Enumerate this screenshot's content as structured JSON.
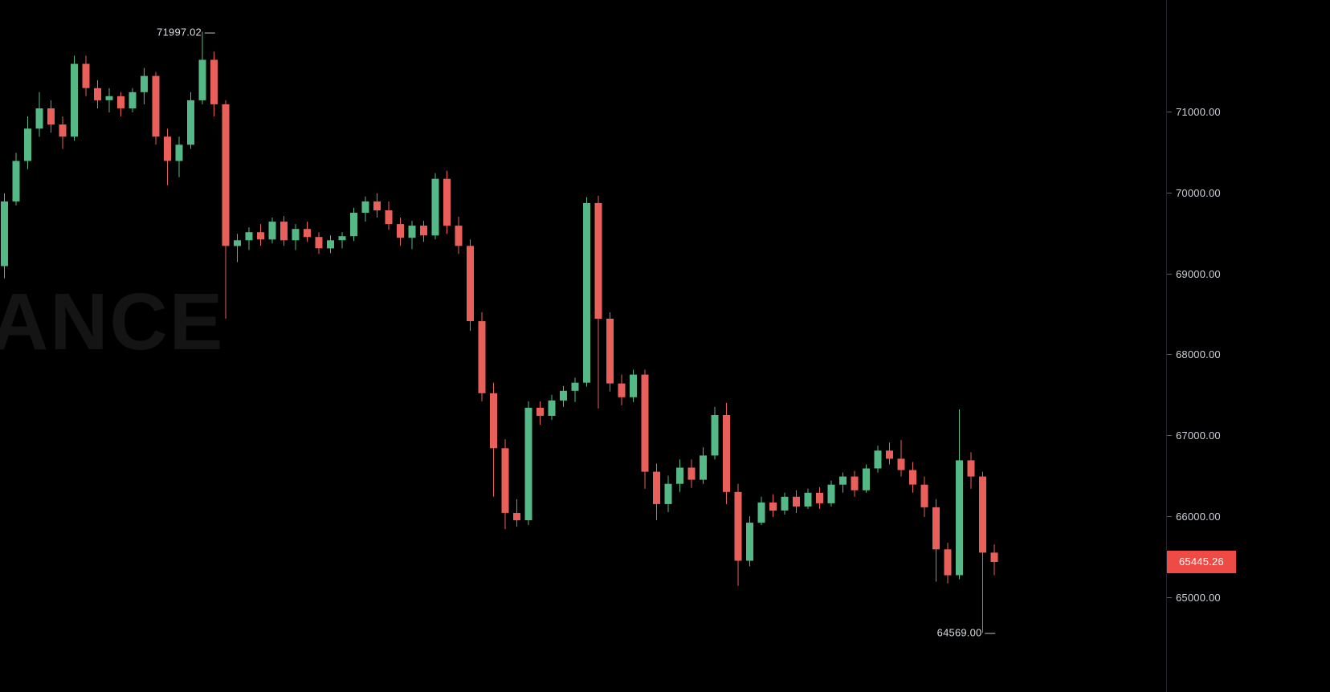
{
  "chart": {
    "watermark": "ANCE",
    "high_label": "71997.02 —",
    "low_label": "64569.00 —",
    "price_badge": "65445.26",
    "colors": {
      "up": "#55b987",
      "down": "#e9605a",
      "badge": "#ef4b46",
      "axis_text": "#cfd3d9",
      "background": "#000000"
    }
  },
  "chart_data": {
    "type": "candlestick",
    "title": "",
    "watermark_text": "ANCE",
    "last_price": 65445.26,
    "high_annotation": 71997.02,
    "low_annotation": 64569.0,
    "y_axis": {
      "ticks": [
        71000,
        70000,
        69000,
        68000,
        67000,
        66000,
        65000
      ],
      "labels": [
        "71000.00",
        "70000.00",
        "69000.00",
        "68000.00",
        "67000.00",
        "66000.00",
        "65000.00"
      ]
    },
    "legend": [],
    "grid": false,
    "candles": [
      [
        69100,
        70000,
        68950,
        69900
      ],
      [
        69900,
        70500,
        69850,
        70400
      ],
      [
        70400,
        70950,
        70300,
        70800
      ],
      [
        70800,
        71250,
        70700,
        71050
      ],
      [
        71050,
        71150,
        70750,
        70850
      ],
      [
        70850,
        70950,
        70550,
        70700
      ],
      [
        70700,
        71700,
        70650,
        71600
      ],
      [
        71600,
        71700,
        71200,
        71300
      ],
      [
        71300,
        71400,
        71050,
        71150
      ],
      [
        71150,
        71300,
        71000,
        71200
      ],
      [
        71200,
        71250,
        70950,
        71050
      ],
      [
        71050,
        71300,
        71000,
        71250
      ],
      [
        71250,
        71550,
        71100,
        71450
      ],
      [
        71450,
        71500,
        70600,
        70700
      ],
      [
        70700,
        70800,
        70100,
        70400
      ],
      [
        70400,
        70700,
        70200,
        70600
      ],
      [
        70600,
        71250,
        70550,
        71150
      ],
      [
        71150,
        71997.02,
        71100,
        71650
      ],
      [
        71650,
        71750,
        70950,
        71100
      ],
      [
        71100,
        71150,
        68450,
        69350
      ],
      [
        69350,
        69500,
        69150,
        69420
      ],
      [
        69420,
        69580,
        69300,
        69520
      ],
      [
        69520,
        69620,
        69350,
        69430
      ],
      [
        69430,
        69700,
        69380,
        69650
      ],
      [
        69650,
        69720,
        69350,
        69420
      ],
      [
        69420,
        69620,
        69300,
        69560
      ],
      [
        69560,
        69650,
        69400,
        69460
      ],
      [
        69460,
        69520,
        69250,
        69320
      ],
      [
        69320,
        69480,
        69260,
        69420
      ],
      [
        69420,
        69520,
        69320,
        69470
      ],
      [
        69470,
        69820,
        69410,
        69760
      ],
      [
        69760,
        69960,
        69650,
        69900
      ],
      [
        69900,
        70000,
        69700,
        69790
      ],
      [
        69790,
        69900,
        69550,
        69620
      ],
      [
        69620,
        69700,
        69350,
        69450
      ],
      [
        69450,
        69660,
        69310,
        69600
      ],
      [
        69600,
        69660,
        69400,
        69480
      ],
      [
        69480,
        70250,
        69430,
        70180
      ],
      [
        70180,
        70280,
        69500,
        69600
      ],
      [
        69600,
        69710,
        69250,
        69350
      ],
      [
        69350,
        69430,
        68300,
        68420
      ],
      [
        68420,
        68530,
        67430,
        67530
      ],
      [
        67530,
        67660,
        66250,
        66850
      ],
      [
        66850,
        66960,
        65850,
        66050
      ],
      [
        66050,
        66220,
        65880,
        65960
      ],
      [
        65960,
        67430,
        65900,
        67350
      ],
      [
        67350,
        67430,
        67140,
        67250
      ],
      [
        67250,
        67510,
        67200,
        67440
      ],
      [
        67440,
        67620,
        67360,
        67560
      ],
      [
        67560,
        67720,
        67420,
        67660
      ],
      [
        67660,
        69950,
        67610,
        69880
      ],
      [
        69880,
        69970,
        67340,
        68450
      ],
      [
        68450,
        68530,
        67550,
        67650
      ],
      [
        67650,
        67760,
        67380,
        67480
      ],
      [
        67480,
        67820,
        67420,
        67760
      ],
      [
        67760,
        67820,
        66350,
        66560
      ],
      [
        66560,
        66660,
        65960,
        66160
      ],
      [
        66160,
        66510,
        66060,
        66410
      ],
      [
        66410,
        66710,
        66310,
        66610
      ],
      [
        66610,
        66710,
        66360,
        66460
      ],
      [
        66460,
        66860,
        66410,
        66760
      ],
      [
        66760,
        67360,
        66710,
        67260
      ],
      [
        67260,
        67410,
        66160,
        66310
      ],
      [
        66310,
        66410,
        65150,
        65460
      ],
      [
        65460,
        66010,
        65390,
        65930
      ],
      [
        65930,
        66250,
        65900,
        66180
      ],
      [
        66180,
        66280,
        66000,
        66080
      ],
      [
        66080,
        66300,
        66030,
        66250
      ],
      [
        66250,
        66330,
        66050,
        66130
      ],
      [
        66130,
        66350,
        66100,
        66300
      ],
      [
        66300,
        66370,
        66100,
        66170
      ],
      [
        66170,
        66450,
        66130,
        66400
      ],
      [
        66400,
        66550,
        66300,
        66500
      ],
      [
        66500,
        66570,
        66250,
        66330
      ],
      [
        66330,
        66650,
        66300,
        66600
      ],
      [
        66600,
        66880,
        66550,
        66820
      ],
      [
        66820,
        66920,
        66650,
        66720
      ],
      [
        66720,
        66950,
        66500,
        66580
      ],
      [
        66580,
        66680,
        66300,
        66400
      ],
      [
        66400,
        66500,
        66000,
        66120
      ],
      [
        66120,
        66220,
        65200,
        65600
      ],
      [
        65600,
        65680,
        65180,
        65280
      ],
      [
        65280,
        67330,
        65230,
        66700
      ],
      [
        66700,
        66800,
        66350,
        66500
      ],
      [
        66500,
        66560,
        64569,
        65560
      ],
      [
        65560,
        65660,
        65280,
        65445.26
      ]
    ]
  }
}
